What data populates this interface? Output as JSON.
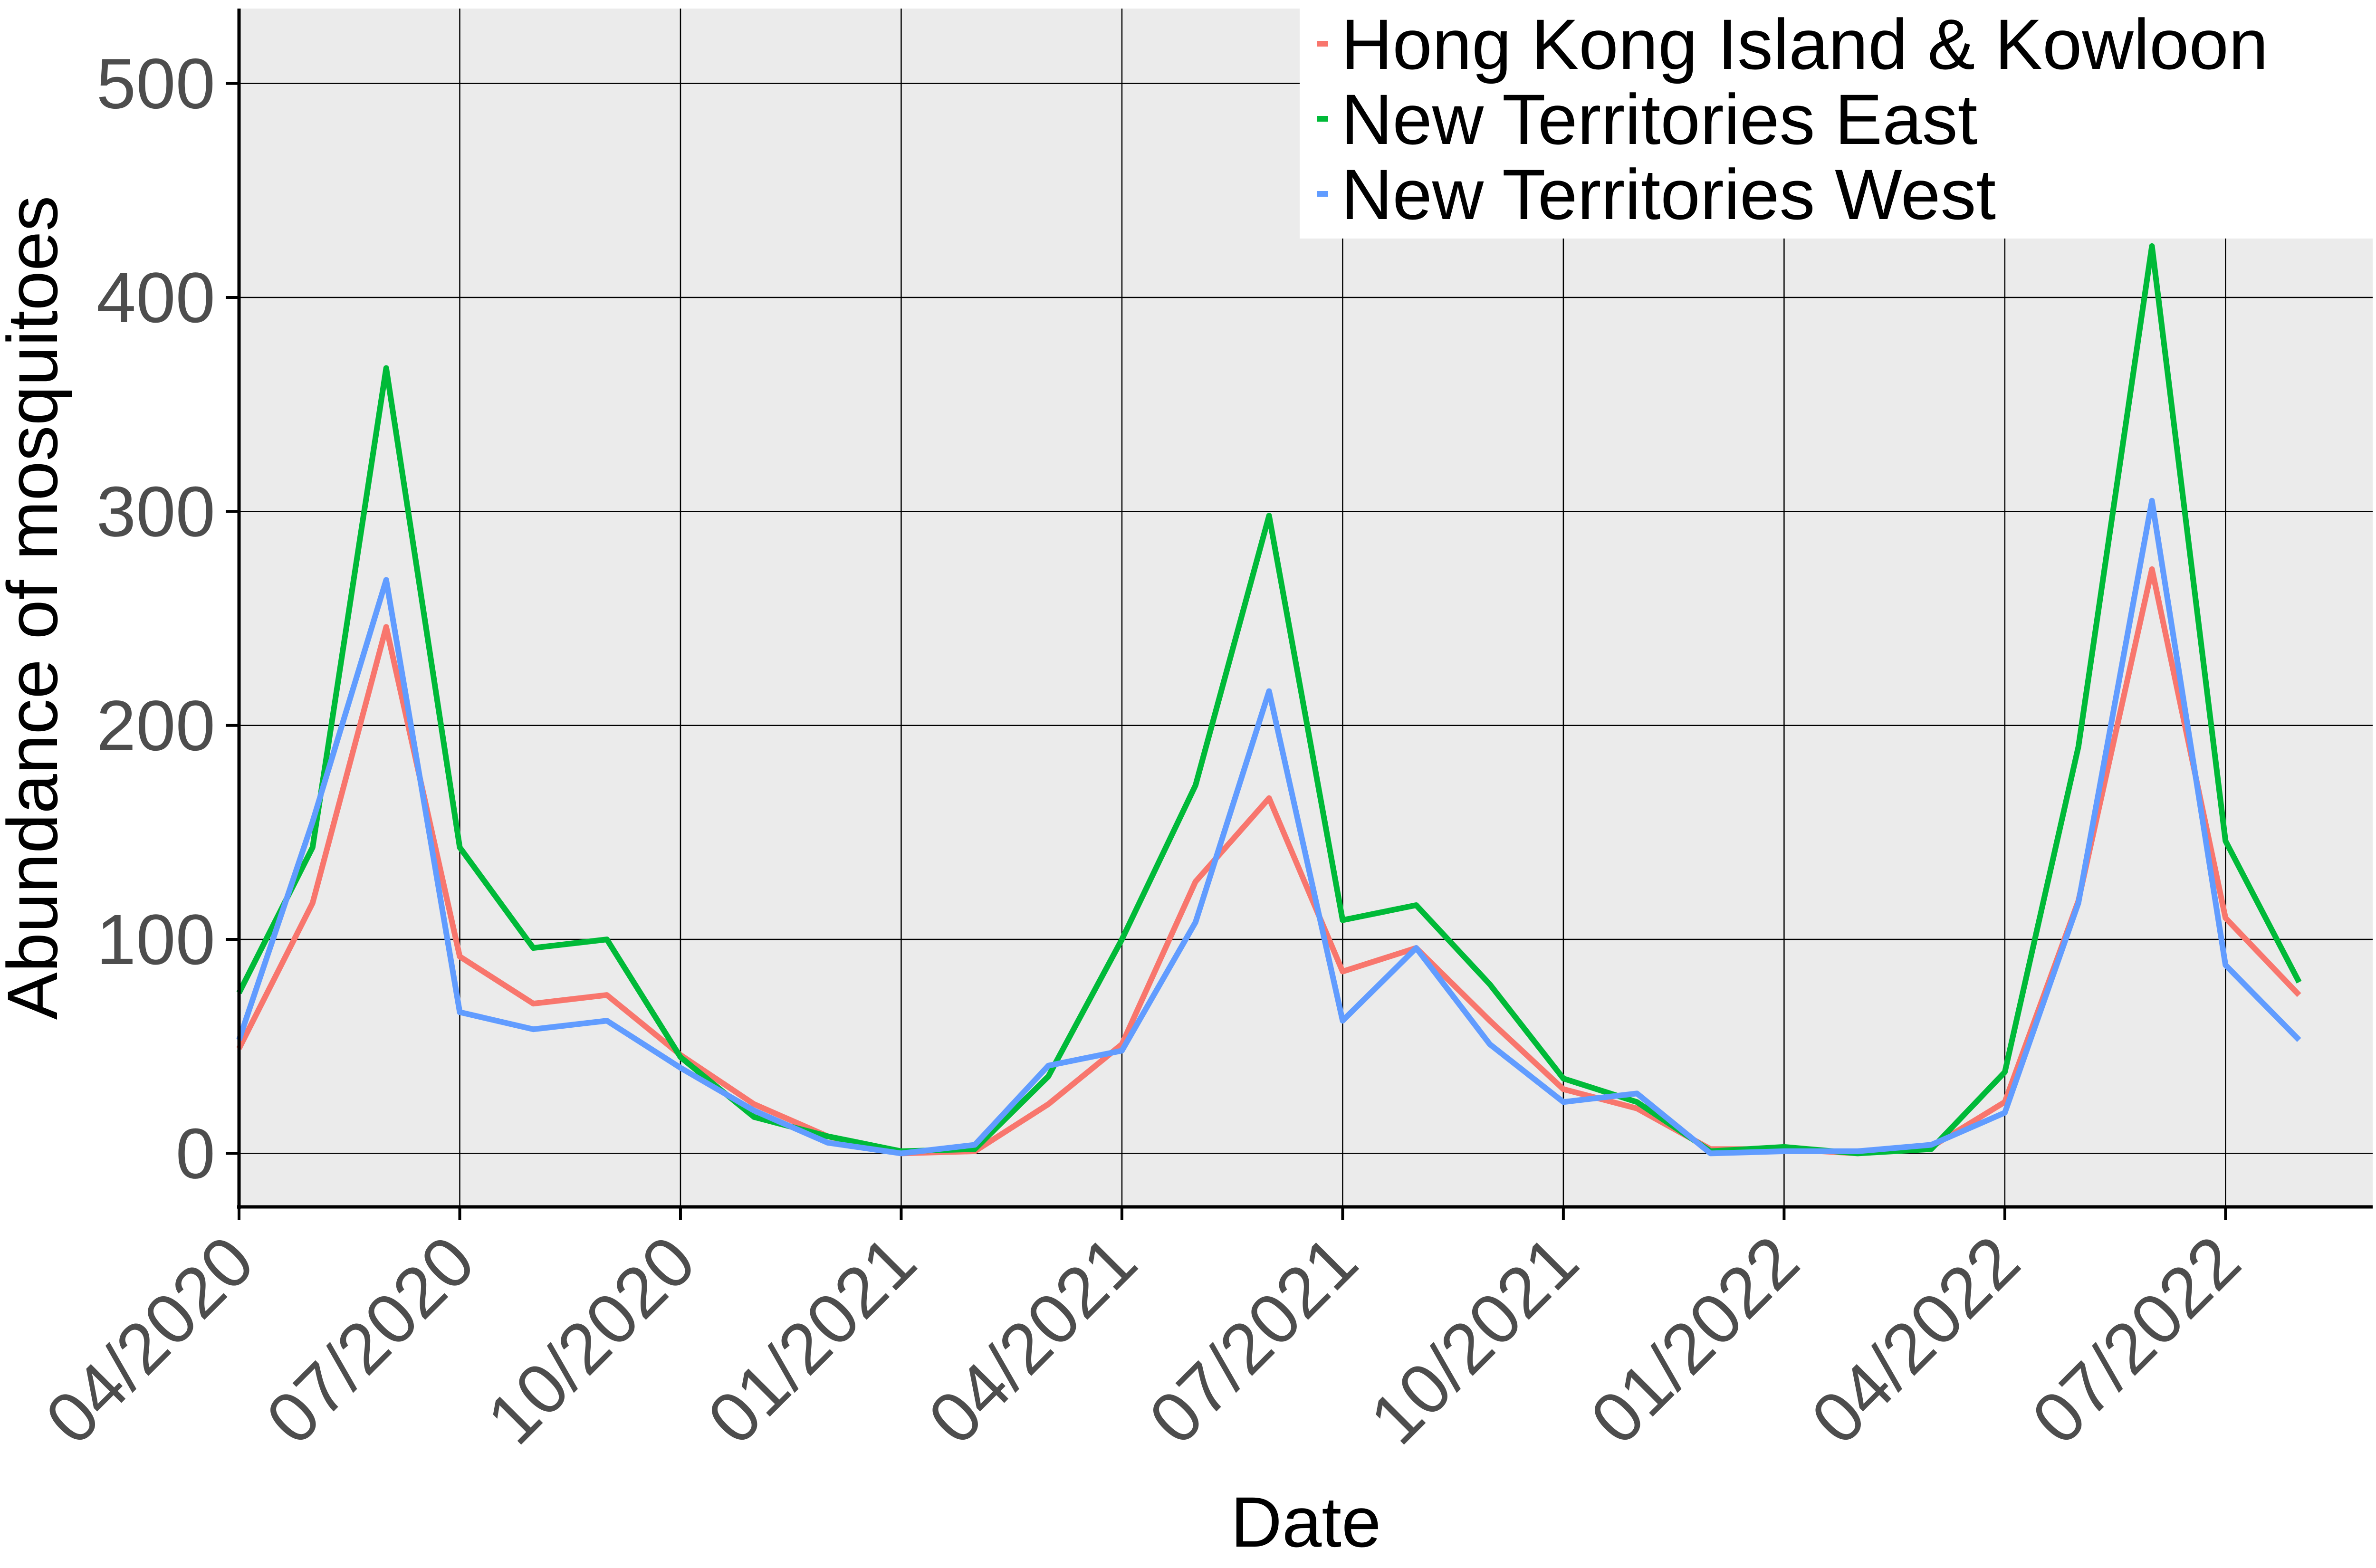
{
  "chart_data": {
    "type": "line",
    "title": "",
    "xlabel": "Date",
    "ylabel": "Abundance of mosquitoes",
    "xlim": [
      "2020-04",
      "2022-09"
    ],
    "ylim": [
      -25,
      535
    ],
    "x_tick_labels": [
      "04/2020",
      "07/2020",
      "10/2020",
      "01/2021",
      "04/2021",
      "07/2021",
      "10/2021",
      "01/2022",
      "04/2022",
      "07/2022"
    ],
    "x_tick_dates": [
      "2020-04",
      "2020-07",
      "2020-10",
      "2021-01",
      "2021-04",
      "2021-07",
      "2021-10",
      "2022-01",
      "2022-04",
      "2022-07"
    ],
    "y_tick_values": [
      0,
      100,
      200,
      300,
      400,
      500
    ],
    "y_tick_labels": [
      "0",
      "100",
      "200",
      "300",
      "400",
      "500"
    ],
    "grid": true,
    "legend_position": "top-right",
    "x": [
      "2020-04",
      "2020-05",
      "2020-06",
      "2020-07",
      "2020-08",
      "2020-09",
      "2020-10",
      "2020-11",
      "2020-12",
      "2021-01",
      "2021-02",
      "2021-03",
      "2021-04",
      "2021-05",
      "2021-06",
      "2021-07",
      "2021-08",
      "2021-09",
      "2021-10",
      "2021-11",
      "2021-12",
      "2022-01",
      "2022-02",
      "2022-03",
      "2022-04",
      "2022-05",
      "2022-06",
      "2022-07",
      "2022-08"
    ],
    "series": [
      {
        "name": "Hong Kong Island & Kowloon",
        "color": "#F8766D",
        "values": [
          49,
          117,
          246,
          92,
          70,
          74,
          46,
          23,
          8,
          0,
          1,
          23,
          51,
          127,
          166,
          85,
          96,
          62,
          30,
          21,
          2,
          2,
          0,
          3,
          24,
          118,
          273,
          110,
          74
        ]
      },
      {
        "name": "New Territories East",
        "color": "#00BA38",
        "values": [
          75,
          143,
          367,
          143,
          96,
          100,
          45,
          17,
          8,
          1,
          2,
          36,
          100,
          172,
          298,
          109,
          116,
          79,
          35,
          24,
          1,
          3,
          0,
          2,
          38,
          190,
          424,
          146,
          80
        ]
      },
      {
        "name": "New Territories West",
        "color": "#619CFF",
        "values": [
          53,
          155,
          268,
          66,
          58,
          62,
          40,
          20,
          5,
          0,
          4,
          41,
          48,
          108,
          216,
          62,
          96,
          51,
          24,
          28,
          0,
          1,
          1,
          4,
          19,
          117,
          305,
          88,
          53
        ]
      }
    ]
  }
}
